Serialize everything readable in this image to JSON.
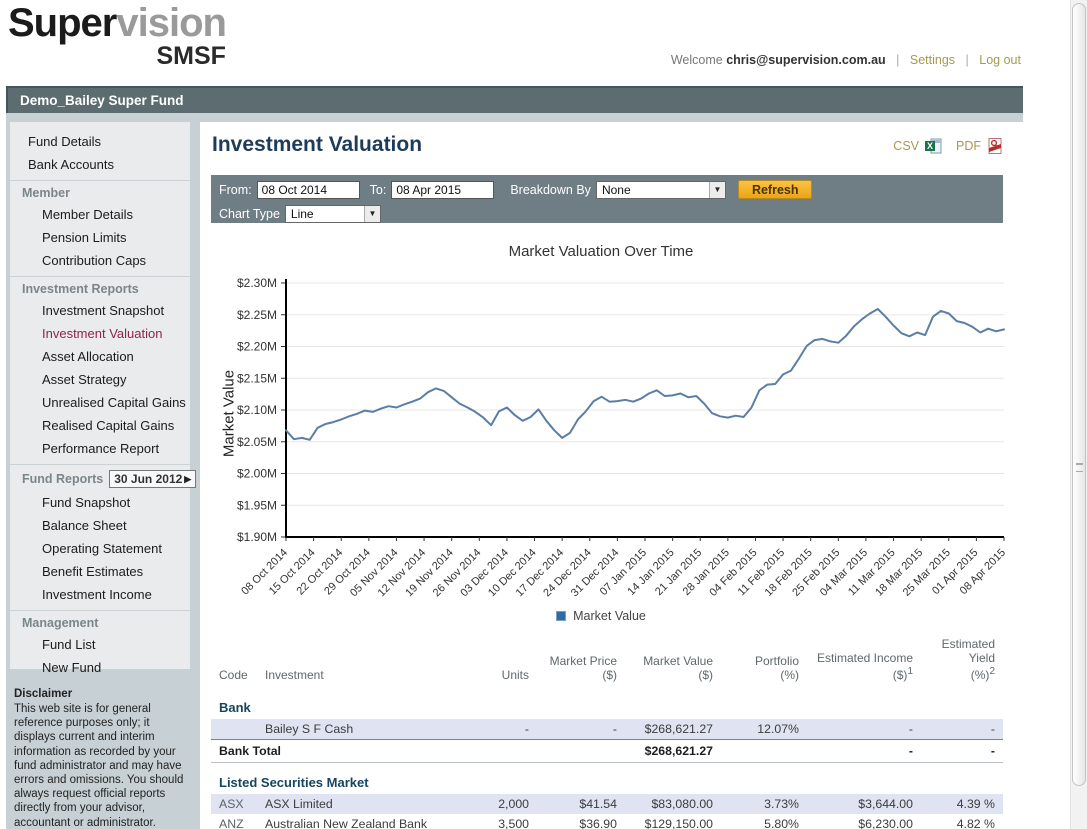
{
  "brand": {
    "word1": "Super",
    "word2": "vision",
    "word3": "SMSF"
  },
  "userbar": {
    "welcome": "Welcome",
    "email": "chris@supervision.com.au",
    "sep": "|",
    "settings": "Settings",
    "logout": "Log out"
  },
  "fund_bar": {
    "title": "Demo_Bailey Super Fund"
  },
  "sidebar": {
    "items": [
      {
        "label": "Fund Details",
        "type": "link"
      },
      {
        "label": "Bank Accounts",
        "type": "link"
      },
      {
        "label": "Member",
        "type": "header"
      },
      {
        "label": "Member Details",
        "type": "link",
        "indent": true
      },
      {
        "label": "Pension Limits",
        "type": "link",
        "indent": true
      },
      {
        "label": "Contribution Caps",
        "type": "link",
        "indent": true
      },
      {
        "label": "Investment Reports",
        "type": "header"
      },
      {
        "label": "Investment Snapshot",
        "type": "link",
        "indent": true
      },
      {
        "label": "Investment Valuation",
        "type": "link",
        "indent": true,
        "active": true
      },
      {
        "label": "Asset Allocation",
        "type": "link",
        "indent": true
      },
      {
        "label": "Asset Strategy",
        "type": "link",
        "indent": true
      },
      {
        "label": "Unrealised Capital Gains",
        "type": "link",
        "indent": true
      },
      {
        "label": "Realised Capital Gains",
        "type": "link",
        "indent": true
      },
      {
        "label": "Performance Report",
        "type": "link",
        "indent": true
      },
      {
        "label": "Fund Reports",
        "type": "header",
        "date": "30 Jun 2012",
        "date_arrow": "▶"
      },
      {
        "label": "Fund Snapshot",
        "type": "link",
        "indent": true
      },
      {
        "label": "Balance Sheet",
        "type": "link",
        "indent": true
      },
      {
        "label": "Operating Statement",
        "type": "link",
        "indent": true
      },
      {
        "label": "Benefit Estimates",
        "type": "link",
        "indent": true
      },
      {
        "label": "Investment Income",
        "type": "link",
        "indent": true
      },
      {
        "label": "Management",
        "type": "header"
      },
      {
        "label": "Fund List",
        "type": "link",
        "indent": true
      },
      {
        "label": "New Fund",
        "type": "link",
        "indent": true
      }
    ]
  },
  "disclaimer": {
    "title": "Disclaimer",
    "text": "This web site is for general reference purposes only; it displays current and interim information as recorded by your fund administrator and may have errors and omissions. You should always request official reports directly from your advisor, accountant or administrator."
  },
  "page": {
    "title": "Investment Valuation"
  },
  "exports": {
    "csv": "CSV",
    "pdf": "PDF"
  },
  "toolbar": {
    "from_label": "From:",
    "from_value": "08 Oct 2014",
    "to_label": "To:",
    "to_value": "08 Apr 2015",
    "breakdown_label": "Breakdown By",
    "breakdown_value": "None",
    "refresh_label": "Refresh",
    "chart_type_label": "Chart Type",
    "chart_type_value": "Line"
  },
  "chart_data": {
    "type": "line",
    "title": "Market Valuation Over Time",
    "ylabel": "Market Value",
    "legend_label": "Market Value",
    "line_color": "#5b7ea6",
    "ylim": [
      1.9,
      2.3
    ],
    "y_tick_labels": [
      "$2.30M",
      "$2.25M",
      "$2.20M",
      "$2.15M",
      "$2.10M",
      "$2.05M",
      "$2.00M",
      "$1.95M",
      "$1.90M"
    ],
    "y_tick_values": [
      2.3,
      2.25,
      2.2,
      2.15,
      2.1,
      2.05,
      2.0,
      1.95,
      1.9
    ],
    "x_labels": [
      "08 Oct 2014",
      "15 Oct 2014",
      "22 Oct 2014",
      "29 Oct 2014",
      "05 Nov 2014",
      "12 Nov 2014",
      "19 Nov 2014",
      "26 Nov 2014",
      "03 Dec 2014",
      "10 Dec 2014",
      "17 Dec 2014",
      "24 Dec 2014",
      "31 Dec 2014",
      "07 Jan 2015",
      "14 Jan 2015",
      "21 Jan 2015",
      "28 Jan 2015",
      "04 Feb 2015",
      "11 Feb 2015",
      "18 Feb 2015",
      "25 Feb 2015",
      "04 Mar 2015",
      "11 Mar 2015",
      "18 Mar 2015",
      "25 Mar 2015",
      "01 Apr 2015",
      "08 Apr 2015"
    ],
    "values_unit": "millions_of_dollars",
    "values": [
      2.068,
      2.054,
      2.056,
      2.053,
      2.072,
      2.078,
      2.081,
      2.085,
      2.09,
      2.094,
      2.099,
      2.097,
      2.102,
      2.106,
      2.104,
      2.109,
      2.113,
      2.118,
      2.128,
      2.134,
      2.13,
      2.12,
      2.11,
      2.104,
      2.097,
      2.088,
      2.076,
      2.098,
      2.104,
      2.092,
      2.083,
      2.089,
      2.101,
      2.083,
      2.068,
      2.056,
      2.064,
      2.085,
      2.098,
      2.114,
      2.121,
      2.113,
      2.114,
      2.116,
      2.113,
      2.118,
      2.126,
      2.131,
      2.122,
      2.123,
      2.126,
      2.12,
      2.122,
      2.11,
      2.095,
      2.09,
      2.088,
      2.091,
      2.089,
      2.104,
      2.131,
      2.14,
      2.141,
      2.156,
      2.162,
      2.181,
      2.201,
      2.21,
      2.212,
      2.208,
      2.206,
      2.217,
      2.232,
      2.243,
      2.252,
      2.259,
      2.247,
      2.233,
      2.221,
      2.216,
      2.222,
      2.218,
      2.247,
      2.256,
      2.252,
      2.24,
      2.237,
      2.231,
      2.222,
      2.228,
      2.224,
      2.227
    ]
  },
  "table": {
    "headers": [
      {
        "l1": "",
        "l2": "Code"
      },
      {
        "l1": "",
        "l2": "Investment"
      },
      {
        "l1": "",
        "l2": "Units"
      },
      {
        "l1": "Market Price",
        "l2": "($)"
      },
      {
        "l1": "",
        "l2": "Market Value ($)"
      },
      {
        "l1": "Portfolio",
        "l2": "(%)"
      },
      {
        "l1": "Estimated Income",
        "l2": "($)",
        "sup": "1"
      },
      {
        "l1": "Estimated Yield",
        "l2": "(%)",
        "sup": "2"
      }
    ],
    "sections": [
      {
        "name": "Bank",
        "rows": [
          {
            "code": "",
            "investment": "Bailey S F Cash",
            "units": "-",
            "price": "-",
            "value": "$268,621.27",
            "portfolio": "12.07%",
            "income": "-",
            "yield": "-",
            "shaded": true
          }
        ],
        "total": {
          "label": "Bank Total",
          "value": "$268,621.27",
          "income": "-",
          "yield": "-"
        }
      },
      {
        "name": "Listed Securities Market",
        "rows": [
          {
            "code": "ASX",
            "investment": "ASX Limited",
            "units": "2,000",
            "price": "$41.54",
            "value": "$83,080.00",
            "portfolio": "3.73%",
            "income": "$3,644.00",
            "yield": "4.39 %",
            "shaded": true
          },
          {
            "code": "ANZ",
            "investment": "Australian New Zealand Bank",
            "units": "3,500",
            "price": "$36.90",
            "value": "$129,150.00",
            "portfolio": "5.80%",
            "income": "$6,230.00",
            "yield": "4.82 %",
            "shaded": false
          }
        ]
      }
    ]
  }
}
